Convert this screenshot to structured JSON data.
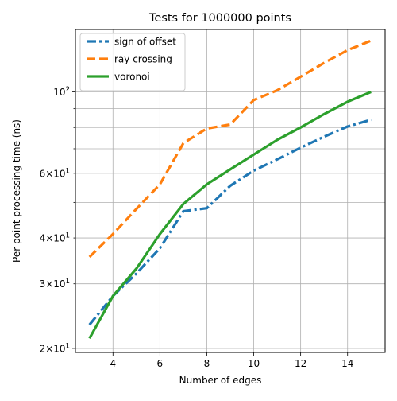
{
  "chart_data": {
    "type": "line",
    "title": "Tests for 1000000 points",
    "xlabel": "Number of edges",
    "ylabel": "Per point processing time (ns)",
    "xlim": [
      2.4,
      15.6
    ],
    "ylim": [
      19.5,
      148
    ],
    "yscale": "log",
    "grid": true,
    "legend_position": "top-left",
    "x_ticks": [
      {
        "value": 4,
        "label": "4"
      },
      {
        "value": 6,
        "label": "6"
      },
      {
        "value": 8,
        "label": "8"
      },
      {
        "value": 10,
        "label": "10"
      },
      {
        "value": 12,
        "label": "12"
      },
      {
        "value": 14,
        "label": "14"
      }
    ],
    "y_major_ticks": [
      {
        "value": 20,
        "label_base": "2×10",
        "label_exp": "1"
      },
      {
        "value": 100,
        "label_base": "10",
        "label_exp": "2"
      }
    ],
    "y_minor_ticks": [
      {
        "value": 30,
        "label_base": "3×10",
        "label_exp": "1"
      },
      {
        "value": 40,
        "label_base": "4×10",
        "label_exp": "1"
      },
      {
        "value": 50,
        "label_base": "",
        "label_exp": ""
      },
      {
        "value": 60,
        "label_base": "6×10",
        "label_exp": "1"
      },
      {
        "value": 70,
        "label_base": "",
        "label_exp": ""
      },
      {
        "value": 80,
        "label_base": "",
        "label_exp": ""
      },
      {
        "value": 90,
        "label_base": "",
        "label_exp": ""
      }
    ],
    "x": [
      3,
      4,
      5,
      6,
      7,
      8,
      9,
      10,
      11,
      12,
      13,
      14,
      15
    ],
    "series": [
      {
        "name": "sign of offset",
        "color": "#1f77b4",
        "dash": "dashdot",
        "values": [
          23.2,
          27.8,
          32,
          37.5,
          47.3,
          48.2,
          55.5,
          61,
          65.5,
          70.5,
          75.5,
          80.5,
          84
        ]
      },
      {
        "name": "ray crossing",
        "color": "#ff7f0e",
        "dash": "dashed",
        "values": [
          35.5,
          41,
          48,
          56,
          72.5,
          79.5,
          81.5,
          95,
          101,
          110,
          120,
          130,
          138
        ]
      },
      {
        "name": "voronoi",
        "color": "#2ca02c",
        "dash": "solid",
        "values": [
          21.3,
          27.8,
          33,
          41,
          49.5,
          56,
          61.5,
          67.5,
          74,
          80,
          87,
          94,
          100
        ]
      }
    ]
  }
}
